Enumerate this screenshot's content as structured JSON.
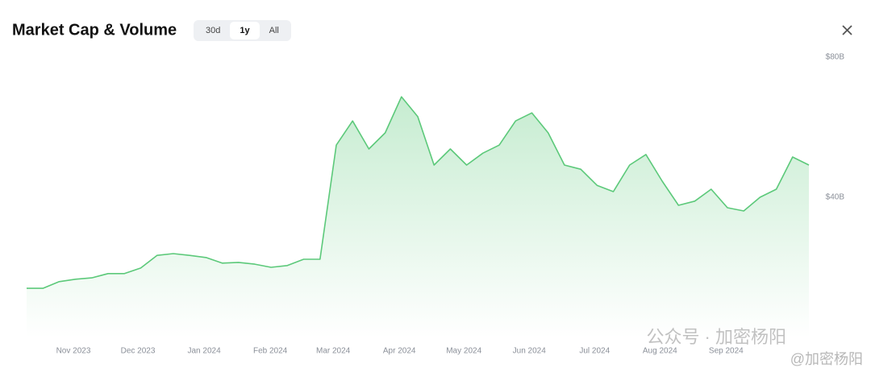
{
  "chart_data": {
    "type": "line",
    "title": "Market Cap & Volume",
    "ranges": [
      "30d",
      "1y",
      "All"
    ],
    "selected_range": "1y",
    "series": [
      {
        "name": "Market Cap",
        "color": "#5cc97a",
        "values": [
          14.0,
          14.0,
          15.9,
          16.6,
          17.0,
          18.2,
          18.2,
          19.8,
          23.4,
          23.9,
          23.4,
          22.8,
          21.2,
          21.4,
          20.9,
          20.0,
          20.5,
          22.3,
          22.3,
          54.9,
          61.8,
          53.8,
          58.4,
          68.7,
          63.0,
          49.2,
          53.8,
          49.2,
          52.6,
          54.9,
          61.8,
          64.1,
          58.4,
          49.2,
          48.0,
          43.4,
          41.6,
          49.2,
          52.2,
          44.6,
          37.7,
          38.9,
          42.3,
          37.0,
          36.1,
          40.0,
          42.3,
          51.5,
          49.2
        ]
      }
    ],
    "ylim": [
      0,
      80
    ],
    "yticks": [
      {
        "value": 80,
        "label": "$80B"
      },
      {
        "value": 40,
        "label": "$40B"
      }
    ],
    "xlim": [
      0,
      48
    ],
    "xticks": [
      {
        "value": 2.87,
        "label": "Nov 2023"
      },
      {
        "value": 6.83,
        "label": "Dec 2023"
      },
      {
        "value": 10.89,
        "label": "Jan 2024"
      },
      {
        "value": 14.95,
        "label": "Feb 2024"
      },
      {
        "value": 18.81,
        "label": "Mar 2024"
      },
      {
        "value": 22.87,
        "label": "Apr 2024"
      },
      {
        "value": 26.83,
        "label": "May 2024"
      },
      {
        "value": 30.84,
        "label": "Jun 2024"
      },
      {
        "value": 34.85,
        "label": "Jul 2024"
      },
      {
        "value": 38.86,
        "label": "Aug 2024"
      },
      {
        "value": 42.92,
        "label": "Sep 2024"
      }
    ],
    "grid": false,
    "watermark": [
      "公众号 · 加密杨阳",
      "@加密杨阳"
    ]
  }
}
